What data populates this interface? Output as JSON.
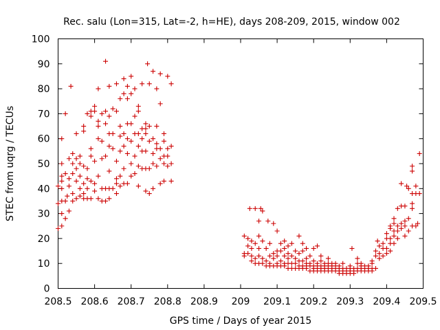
{
  "chart_data": {
    "type": "scatter",
    "title": "Rec. salu (Lon=315, Lat=-2, h=HE), days 208-209, 2015, window 002",
    "xlabel": "GPS time / Days of year 2015",
    "ylabel": "STEC from uqrg / TECUs",
    "xlim": [
      208.5,
      209.5
    ],
    "ylim": [
      0,
      100
    ],
    "xticks": [
      "208.5",
      "208.6",
      "208.7",
      "208.8",
      "208.9",
      "209",
      "209.1",
      "209.2",
      "209.3",
      "209.4",
      "209.5"
    ],
    "yticks": [
      "0",
      "10",
      "20",
      "30",
      "40",
      "50",
      "60",
      "70",
      "80",
      "90",
      "100"
    ],
    "grid": false,
    "marker": "plus",
    "color": "#cc0000",
    "points": [
      [
        208.5,
        24
      ],
      [
        208.5,
        34
      ],
      [
        208.5,
        41
      ],
      [
        208.51,
        25
      ],
      [
        208.51,
        30
      ],
      [
        208.51,
        35
      ],
      [
        208.51,
        40
      ],
      [
        208.51,
        43
      ],
      [
        208.51,
        45
      ],
      [
        208.51,
        50
      ],
      [
        208.51,
        60
      ],
      [
        208.52,
        28
      ],
      [
        208.52,
        35
      ],
      [
        208.52,
        46
      ],
      [
        208.52,
        70
      ],
      [
        208.525,
        37
      ],
      [
        208.53,
        31
      ],
      [
        208.53,
        41
      ],
      [
        208.53,
        44
      ],
      [
        208.53,
        52
      ],
      [
        208.535,
        81
      ],
      [
        208.54,
        35
      ],
      [
        208.54,
        38
      ],
      [
        208.54,
        46
      ],
      [
        208.54,
        50
      ],
      [
        208.54,
        54
      ],
      [
        208.55,
        36
      ],
      [
        208.55,
        43
      ],
      [
        208.55,
        48
      ],
      [
        208.55,
        52
      ],
      [
        208.55,
        62
      ],
      [
        208.56,
        37
      ],
      [
        208.56,
        40
      ],
      [
        208.56,
        45
      ],
      [
        208.56,
        50
      ],
      [
        208.56,
        53
      ],
      [
        208.57,
        36
      ],
      [
        208.57,
        38
      ],
      [
        208.57,
        42
      ],
      [
        208.57,
        49
      ],
      [
        208.57,
        63
      ],
      [
        208.57,
        65
      ],
      [
        208.58,
        36
      ],
      [
        208.58,
        40
      ],
      [
        208.58,
        44
      ],
      [
        208.58,
        48
      ],
      [
        208.58,
        70
      ],
      [
        208.59,
        36
      ],
      [
        208.59,
        43
      ],
      [
        208.59,
        53
      ],
      [
        208.59,
        56
      ],
      [
        208.59,
        69
      ],
      [
        208.59,
        71
      ],
      [
        208.6,
        39
      ],
      [
        208.6,
        42
      ],
      [
        208.6,
        51
      ],
      [
        208.6,
        71
      ],
      [
        208.6,
        73
      ],
      [
        208.61,
        36
      ],
      [
        208.61,
        45
      ],
      [
        208.61,
        60
      ],
      [
        208.61,
        65
      ],
      [
        208.61,
        67
      ],
      [
        208.61,
        80
      ],
      [
        208.62,
        35
      ],
      [
        208.62,
        40
      ],
      [
        208.62,
        52
      ],
      [
        208.62,
        59
      ],
      [
        208.62,
        70
      ],
      [
        208.63,
        35
      ],
      [
        208.63,
        40
      ],
      [
        208.63,
        53
      ],
      [
        208.63,
        66
      ],
      [
        208.63,
        71
      ],
      [
        208.63,
        91
      ],
      [
        208.64,
        36
      ],
      [
        208.64,
        40
      ],
      [
        208.64,
        47
      ],
      [
        208.64,
        57
      ],
      [
        208.64,
        62
      ],
      [
        208.64,
        69
      ],
      [
        208.64,
        81
      ],
      [
        208.65,
        40
      ],
      [
        208.65,
        56
      ],
      [
        208.65,
        62
      ],
      [
        208.65,
        72
      ],
      [
        208.66,
        38
      ],
      [
        208.66,
        42
      ],
      [
        208.66,
        44
      ],
      [
        208.66,
        51
      ],
      [
        208.66,
        71
      ],
      [
        208.66,
        82
      ],
      [
        208.67,
        41
      ],
      [
        208.67,
        45
      ],
      [
        208.67,
        55
      ],
      [
        208.67,
        61
      ],
      [
        208.67,
        65
      ],
      [
        208.67,
        76
      ],
      [
        208.68,
        42
      ],
      [
        208.68,
        48
      ],
      [
        208.68,
        57
      ],
      [
        208.68,
        62
      ],
      [
        208.68,
        78
      ],
      [
        208.68,
        84
      ],
      [
        208.69,
        42
      ],
      [
        208.69,
        54
      ],
      [
        208.69,
        60
      ],
      [
        208.69,
        66
      ],
      [
        208.69,
        76
      ],
      [
        208.69,
        81
      ],
      [
        208.7,
        45
      ],
      [
        208.7,
        50
      ],
      [
        208.7,
        59
      ],
      [
        208.7,
        66
      ],
      [
        208.7,
        78
      ],
      [
        208.7,
        85
      ],
      [
        208.71,
        46
      ],
      [
        208.71,
        53
      ],
      [
        208.71,
        62
      ],
      [
        208.71,
        69
      ],
      [
        208.71,
        80
      ],
      [
        208.72,
        41
      ],
      [
        208.72,
        49
      ],
      [
        208.72,
        57
      ],
      [
        208.72,
        62
      ],
      [
        208.72,
        71
      ],
      [
        208.72,
        73
      ],
      [
        208.73,
        48
      ],
      [
        208.73,
        55
      ],
      [
        208.73,
        60
      ],
      [
        208.73,
        64
      ],
      [
        208.73,
        82
      ],
      [
        208.74,
        39
      ],
      [
        208.74,
        48
      ],
      [
        208.74,
        55
      ],
      [
        208.74,
        62
      ],
      [
        208.74,
        64
      ],
      [
        208.74,
        66
      ],
      [
        208.745,
        90
      ],
      [
        208.75,
        38
      ],
      [
        208.75,
        48
      ],
      [
        208.75,
        59
      ],
      [
        208.75,
        65
      ],
      [
        208.75,
        82
      ],
      [
        208.76,
        40
      ],
      [
        208.76,
        50
      ],
      [
        208.76,
        54
      ],
      [
        208.76,
        60
      ],
      [
        208.76,
        87
      ],
      [
        208.77,
        49
      ],
      [
        208.77,
        56
      ],
      [
        208.77,
        58
      ],
      [
        208.77,
        65
      ],
      [
        208.77,
        80
      ],
      [
        208.78,
        42
      ],
      [
        208.78,
        52
      ],
      [
        208.78,
        56
      ],
      [
        208.78,
        74
      ],
      [
        208.78,
        86
      ],
      [
        208.79,
        43
      ],
      [
        208.79,
        50
      ],
      [
        208.79,
        53
      ],
      [
        208.79,
        59
      ],
      [
        208.79,
        62
      ],
      [
        208.8,
        49
      ],
      [
        208.8,
        53
      ],
      [
        208.8,
        56
      ],
      [
        208.8,
        85
      ],
      [
        208.81,
        43
      ],
      [
        208.81,
        50
      ],
      [
        208.81,
        57
      ],
      [
        208.81,
        82
      ],
      [
        209.01,
        13
      ],
      [
        209.01,
        14
      ],
      [
        209.01,
        21
      ],
      [
        209.02,
        14
      ],
      [
        209.02,
        17
      ],
      [
        209.02,
        20
      ],
      [
        209.025,
        32
      ],
      [
        209.03,
        11
      ],
      [
        209.03,
        13
      ],
      [
        209.03,
        16
      ],
      [
        209.03,
        19
      ],
      [
        209.04,
        10
      ],
      [
        209.04,
        12
      ],
      [
        209.04,
        18
      ],
      [
        209.04,
        32
      ],
      [
        209.05,
        10
      ],
      [
        209.05,
        13
      ],
      [
        209.05,
        16
      ],
      [
        209.05,
        21
      ],
      [
        209.05,
        27
      ],
      [
        209.055,
        32
      ],
      [
        209.06,
        10
      ],
      [
        209.06,
        12
      ],
      [
        209.06,
        19
      ],
      [
        209.06,
        31
      ],
      [
        209.07,
        9
      ],
      [
        209.07,
        11
      ],
      [
        209.07,
        16
      ],
      [
        209.075,
        27
      ],
      [
        209.08,
        9
      ],
      [
        209.08,
        10
      ],
      [
        209.08,
        13
      ],
      [
        209.08,
        18
      ],
      [
        209.09,
        9
      ],
      [
        209.09,
        12
      ],
      [
        209.09,
        14
      ],
      [
        209.09,
        26
      ],
      [
        209.1,
        9
      ],
      [
        209.1,
        10
      ],
      [
        209.1,
        13
      ],
      [
        209.1,
        15
      ],
      [
        209.1,
        23
      ],
      [
        209.11,
        9
      ],
      [
        209.11,
        11
      ],
      [
        209.11,
        15
      ],
      [
        209.11,
        18
      ],
      [
        209.12,
        9
      ],
      [
        209.12,
        10
      ],
      [
        209.12,
        13
      ],
      [
        209.12,
        16
      ],
      [
        209.12,
        19
      ],
      [
        209.13,
        8
      ],
      [
        209.13,
        10
      ],
      [
        209.13,
        12
      ],
      [
        209.13,
        14
      ],
      [
        209.13,
        17
      ],
      [
        209.14,
        8
      ],
      [
        209.14,
        10
      ],
      [
        209.14,
        13
      ],
      [
        209.14,
        18
      ],
      [
        209.15,
        8
      ],
      [
        209.15,
        10
      ],
      [
        209.15,
        12
      ],
      [
        209.15,
        15
      ],
      [
        209.16,
        8
      ],
      [
        209.16,
        9
      ],
      [
        209.16,
        11
      ],
      [
        209.16,
        14
      ],
      [
        209.16,
        21
      ],
      [
        209.17,
        8
      ],
      [
        209.17,
        9
      ],
      [
        209.17,
        11
      ],
      [
        209.17,
        15
      ],
      [
        209.17,
        18
      ],
      [
        209.18,
        8
      ],
      [
        209.18,
        9
      ],
      [
        209.18,
        10
      ],
      [
        209.18,
        12
      ],
      [
        209.18,
        16
      ],
      [
        209.19,
        7
      ],
      [
        209.19,
        9
      ],
      [
        209.19,
        10
      ],
      [
        209.19,
        13
      ],
      [
        209.2,
        7
      ],
      [
        209.2,
        8
      ],
      [
        209.2,
        9
      ],
      [
        209.2,
        11
      ],
      [
        209.2,
        16
      ],
      [
        209.21,
        7
      ],
      [
        209.21,
        8
      ],
      [
        209.21,
        9
      ],
      [
        209.21,
        10
      ],
      [
        209.21,
        17
      ],
      [
        209.22,
        7
      ],
      [
        209.22,
        8
      ],
      [
        209.22,
        9
      ],
      [
        209.22,
        11
      ],
      [
        209.22,
        13
      ],
      [
        209.23,
        7
      ],
      [
        209.23,
        8
      ],
      [
        209.23,
        9
      ],
      [
        209.23,
        10
      ],
      [
        209.24,
        7
      ],
      [
        209.24,
        8
      ],
      [
        209.24,
        9
      ],
      [
        209.24,
        10
      ],
      [
        209.24,
        12
      ],
      [
        209.25,
        7
      ],
      [
        209.25,
        8
      ],
      [
        209.25,
        9
      ],
      [
        209.25,
        10
      ],
      [
        209.26,
        7
      ],
      [
        209.26,
        8
      ],
      [
        209.26,
        9
      ],
      [
        209.26,
        10
      ],
      [
        209.27,
        6
      ],
      [
        209.27,
        7
      ],
      [
        209.27,
        8
      ],
      [
        209.27,
        9
      ],
      [
        209.28,
        6
      ],
      [
        209.28,
        7
      ],
      [
        209.28,
        8
      ],
      [
        209.28,
        10
      ],
      [
        209.29,
        6
      ],
      [
        209.29,
        7
      ],
      [
        209.29,
        8
      ],
      [
        209.3,
        6
      ],
      [
        209.3,
        7
      ],
      [
        209.3,
        8
      ],
      [
        209.3,
        9
      ],
      [
        209.305,
        16
      ],
      [
        209.31,
        6
      ],
      [
        209.31,
        7
      ],
      [
        209.31,
        8
      ],
      [
        209.32,
        7
      ],
      [
        209.32,
        8
      ],
      [
        209.32,
        10
      ],
      [
        209.32,
        12
      ],
      [
        209.33,
        7
      ],
      [
        209.33,
        8
      ],
      [
        209.33,
        9
      ],
      [
        209.33,
        10
      ],
      [
        209.34,
        7
      ],
      [
        209.34,
        8
      ],
      [
        209.34,
        9
      ],
      [
        209.35,
        7
      ],
      [
        209.35,
        8
      ],
      [
        209.35,
        9
      ],
      [
        209.36,
        7
      ],
      [
        209.36,
        8
      ],
      [
        209.36,
        10
      ],
      [
        209.36,
        11
      ],
      [
        209.37,
        8
      ],
      [
        209.37,
        13
      ],
      [
        209.37,
        15
      ],
      [
        209.375,
        19
      ],
      [
        209.38,
        12
      ],
      [
        209.38,
        14
      ],
      [
        209.38,
        17
      ],
      [
        209.39,
        13
      ],
      [
        209.39,
        16
      ],
      [
        209.39,
        18
      ],
      [
        209.4,
        14
      ],
      [
        209.4,
        16
      ],
      [
        209.4,
        20
      ],
      [
        209.4,
        22
      ],
      [
        209.41,
        15
      ],
      [
        209.41,
        18
      ],
      [
        209.41,
        20
      ],
      [
        209.41,
        24
      ],
      [
        209.41,
        25
      ],
      [
        209.42,
        18
      ],
      [
        209.42,
        21
      ],
      [
        209.42,
        23
      ],
      [
        209.42,
        26
      ],
      [
        209.42,
        28
      ],
      [
        209.43,
        20
      ],
      [
        209.43,
        23
      ],
      [
        209.43,
        25
      ],
      [
        209.43,
        32
      ],
      [
        209.44,
        24
      ],
      [
        209.44,
        26
      ],
      [
        209.44,
        33
      ],
      [
        209.44,
        42
      ],
      [
        209.45,
        21
      ],
      [
        209.45,
        25
      ],
      [
        209.45,
        27
      ],
      [
        209.45,
        33
      ],
      [
        209.455,
        41
      ],
      [
        209.46,
        23
      ],
      [
        209.46,
        28
      ],
      [
        209.46,
        40
      ],
      [
        209.47,
        25
      ],
      [
        209.47,
        32
      ],
      [
        209.47,
        34
      ],
      [
        209.47,
        38
      ],
      [
        209.47,
        47
      ],
      [
        209.47,
        49
      ],
      [
        209.48,
        25
      ],
      [
        209.48,
        38
      ],
      [
        209.48,
        41
      ],
      [
        209.485,
        26
      ],
      [
        209.49,
        38
      ],
      [
        209.49,
        54
      ]
    ]
  }
}
